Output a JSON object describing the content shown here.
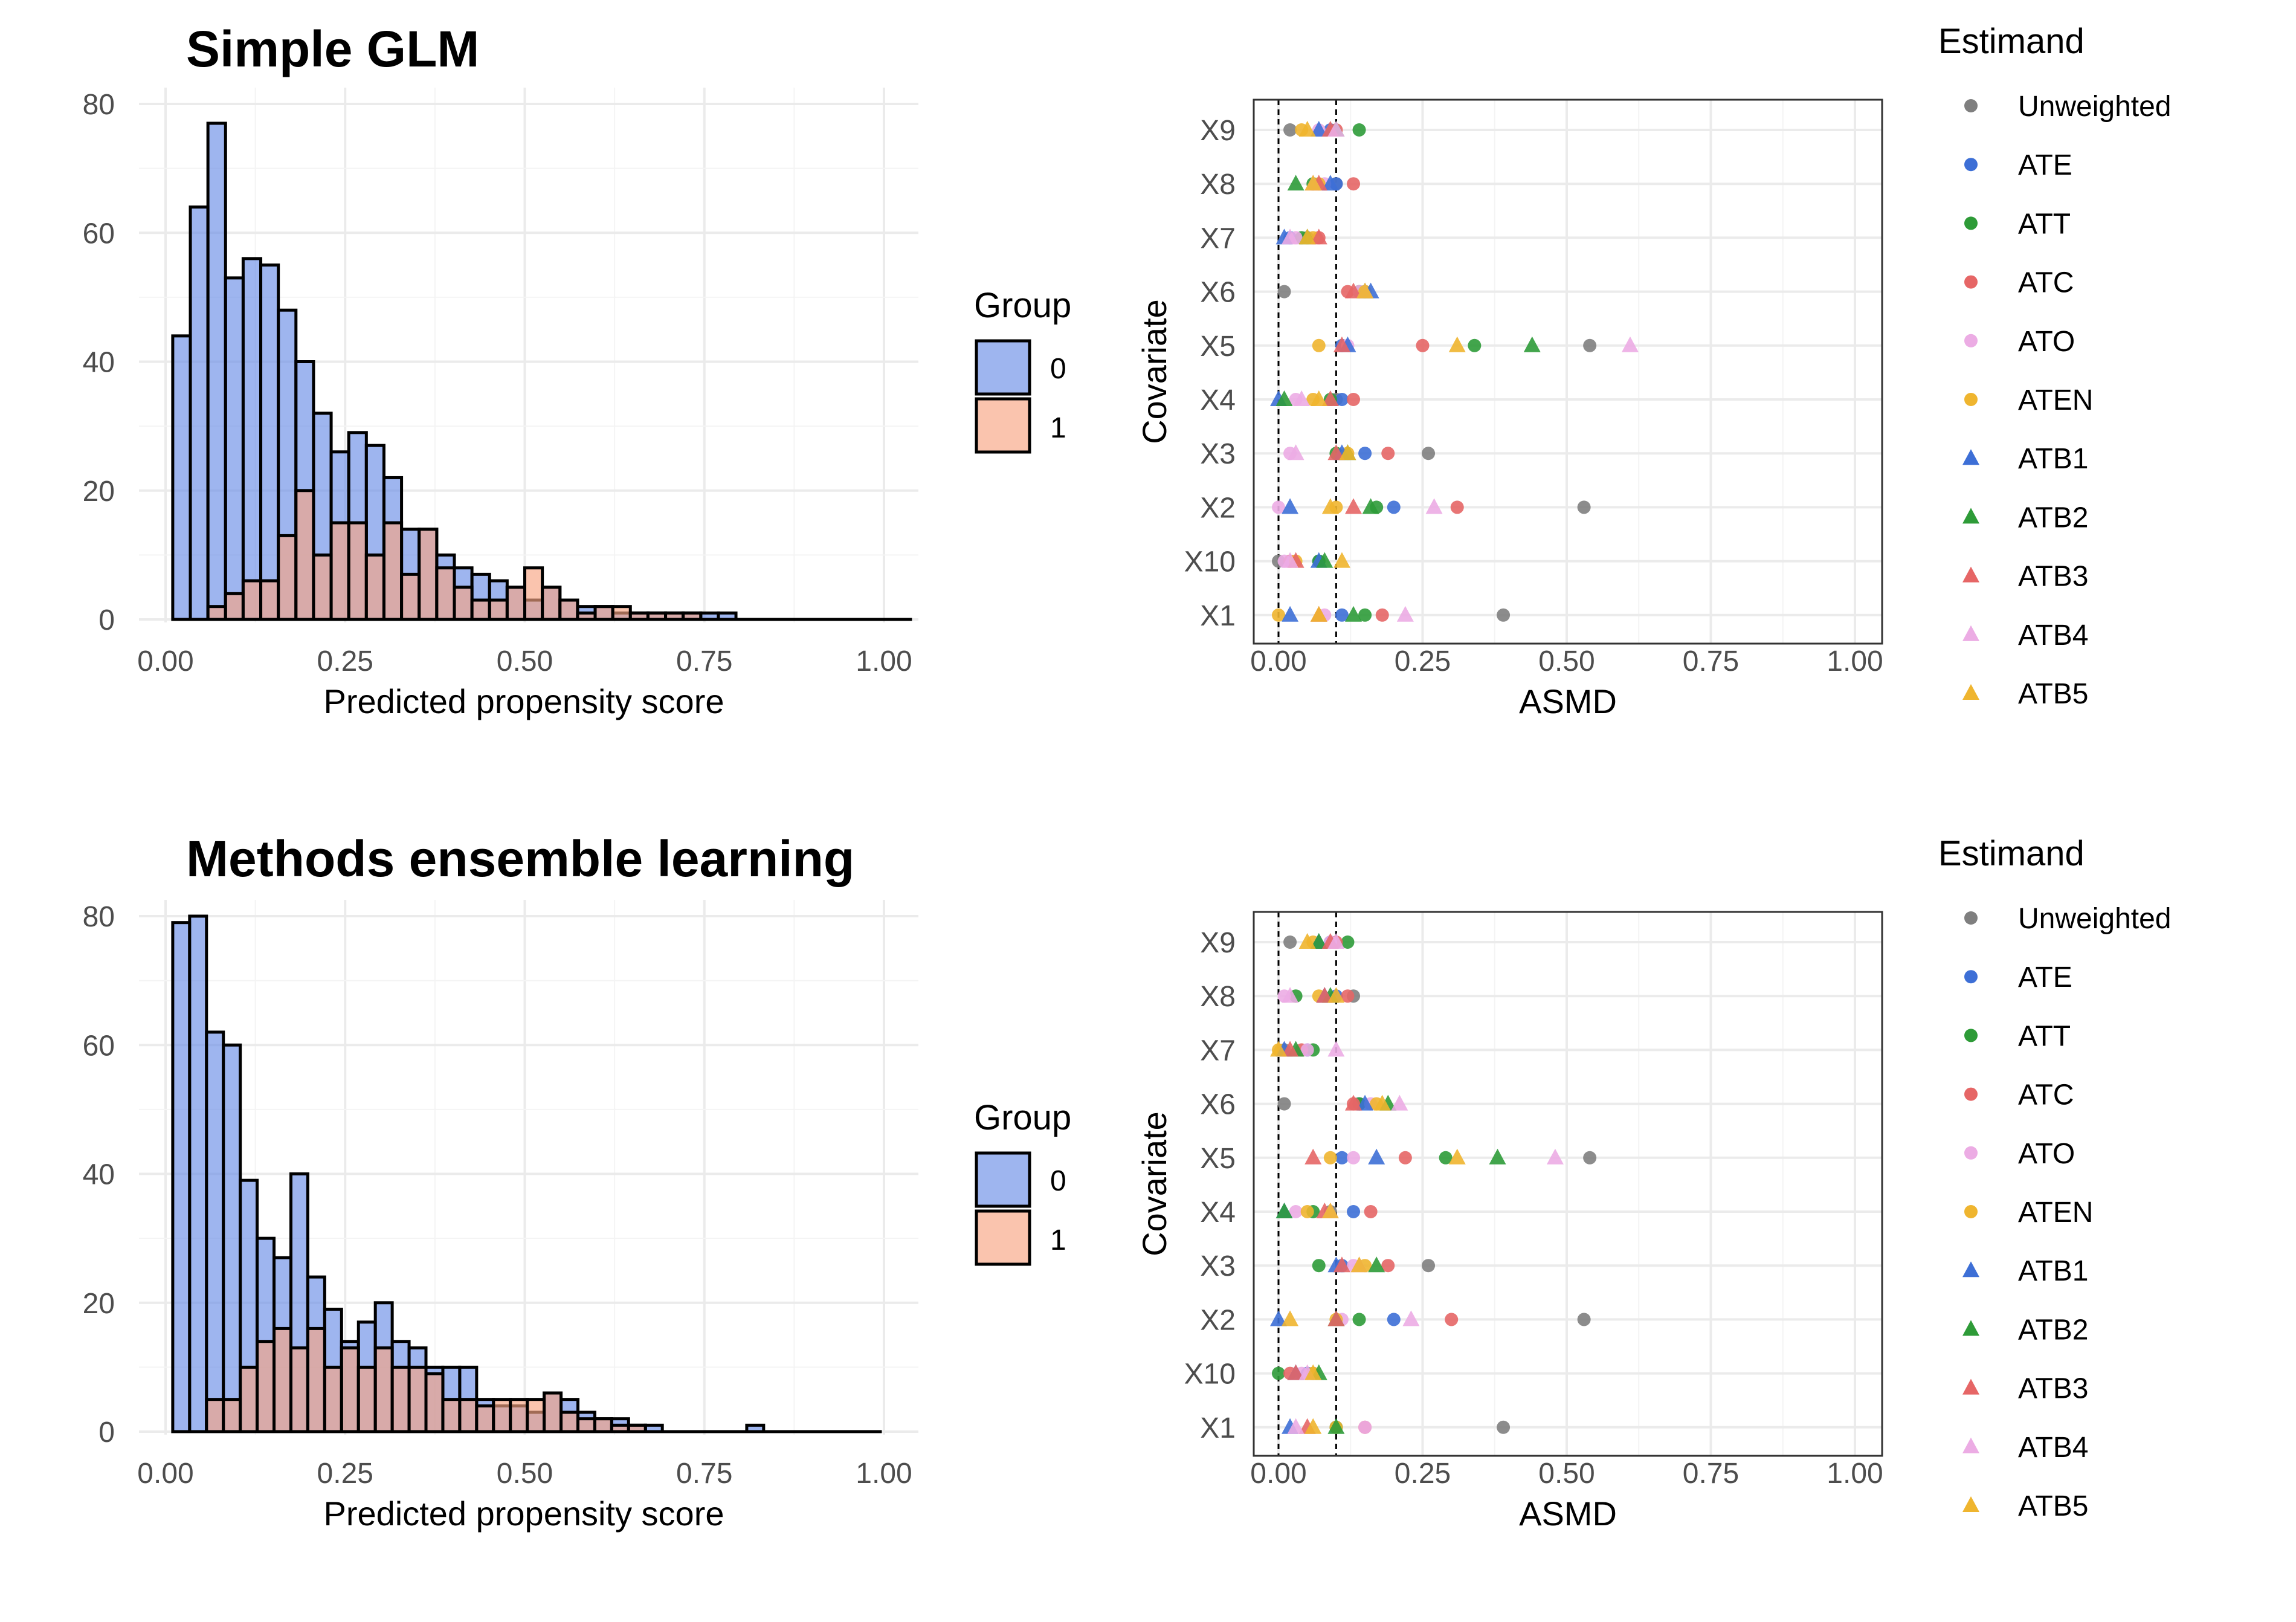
{
  "colors": {
    "group_0": "#6a8de6",
    "group_1": "#f8a582",
    "overlap": "#c08484",
    "Unweighted": "#7f7f7f",
    "ATE": "#3d6fd6",
    "ATT": "#2e9b38",
    "ATC": "#e66666",
    "ATO": "#ecace4",
    "ATEN": "#efb52f",
    "ATB1": "#3d6fd6",
    "ATB2": "#2e9b38",
    "ATB3": "#e66666",
    "ATB4": "#ecace4",
    "ATB5": "#efb52f"
  },
  "chart_data": [
    {
      "type": "bar",
      "subtype": "overlapping-histogram",
      "title": "Simple GLM",
      "xlabel": "Predicted propensity score",
      "ylabel": "",
      "xlim": [
        0,
        1
      ],
      "ylim": [
        0,
        80
      ],
      "xticks": [
        "0.00",
        "0.25",
        "0.50",
        "0.75",
        "1.00"
      ],
      "yticks": [
        "0",
        "20",
        "40",
        "60",
        "80"
      ],
      "bin_start": 0.01,
      "bin_width": 0.0245,
      "legend": {
        "title": "Group",
        "entries": [
          "0",
          "1"
        ],
        "position": "right"
      },
      "series": [
        {
          "name": "0",
          "values": [
            44,
            64,
            77,
            53,
            56,
            55,
            48,
            40,
            32,
            26,
            29,
            27,
            22,
            14,
            14,
            10,
            8,
            7,
            6,
            5,
            3,
            5,
            3,
            2,
            2,
            1,
            1,
            1,
            1,
            1,
            1,
            1,
            0,
            0,
            0,
            0,
            0,
            0,
            0,
            0,
            0,
            0
          ]
        },
        {
          "name": "1",
          "values": [
            0,
            0,
            2,
            4,
            6,
            6,
            13,
            20,
            10,
            15,
            15,
            10,
            15,
            7,
            14,
            8,
            5,
            3,
            3,
            5,
            8,
            5,
            3,
            1,
            2,
            2,
            1,
            1,
            1,
            1,
            0,
            0,
            0,
            0,
            0,
            0,
            0,
            0,
            0,
            0,
            0,
            0
          ]
        }
      ]
    },
    {
      "type": "scatter",
      "subtype": "love-plot",
      "xlabel": "ASMD",
      "ylabel": "Covariate",
      "xlim": [
        0,
        1
      ],
      "xticks": [
        "0.00",
        "0.25",
        "0.50",
        "0.75",
        "1.00"
      ],
      "vlines": [
        0,
        0.1
      ],
      "categories": [
        "X9",
        "X8",
        "X7",
        "X6",
        "X5",
        "X4",
        "X3",
        "X2",
        "X10",
        "X1"
      ],
      "legend": {
        "title": "Estimand",
        "position": "right",
        "entries": [
          {
            "name": "Unweighted",
            "shape": "circle"
          },
          {
            "name": "ATE",
            "shape": "circle"
          },
          {
            "name": "ATT",
            "shape": "circle"
          },
          {
            "name": "ATC",
            "shape": "circle"
          },
          {
            "name": "ATO",
            "shape": "circle"
          },
          {
            "name": "ATEN",
            "shape": "circle"
          },
          {
            "name": "ATB1",
            "shape": "triangle"
          },
          {
            "name": "ATB2",
            "shape": "triangle"
          },
          {
            "name": "ATB3",
            "shape": "triangle"
          },
          {
            "name": "ATB4",
            "shape": "triangle"
          },
          {
            "name": "ATB5",
            "shape": "triangle"
          }
        ]
      },
      "series": [
        {
          "name": "Unweighted",
          "values": [
            0.02,
            0.1,
            0.05,
            0.01,
            0.54,
            0.1,
            0.26,
            0.53,
            0.0,
            0.39
          ]
        },
        {
          "name": "ATE",
          "values": [
            0.09,
            0.1,
            0.02,
            0.15,
            0.11,
            0.11,
            0.15,
            0.2,
            0.07,
            0.11
          ]
        },
        {
          "name": "ATT",
          "values": [
            0.14,
            0.06,
            0.04,
            0.14,
            0.34,
            0.09,
            0.1,
            0.17,
            0.07,
            0.15
          ]
        },
        {
          "name": "ATC",
          "values": [
            0.1,
            0.13,
            0.07,
            0.12,
            0.25,
            0.13,
            0.19,
            0.31,
            0.02,
            0.18
          ]
        },
        {
          "name": "ATO",
          "values": [
            0.07,
            0.08,
            0.03,
            0.14,
            0.12,
            0.03,
            0.02,
            0.0,
            0.01,
            0.08
          ]
        },
        {
          "name": "ATEN",
          "values": [
            0.04,
            0.07,
            0.06,
            0.15,
            0.07,
            0.06,
            0.12,
            0.1,
            0.03,
            0.0
          ]
        },
        {
          "name": "ATB1",
          "values": [
            0.07,
            0.09,
            0.01,
            0.16,
            0.12,
            0.0,
            0.11,
            0.02,
            0.07,
            0.02
          ]
        },
        {
          "name": "ATB2",
          "values": [
            0.1,
            0.03,
            0.05,
            0.15,
            0.44,
            0.01,
            0.12,
            0.16,
            0.08,
            0.13
          ]
        },
        {
          "name": "ATB3",
          "values": [
            0.09,
            0.07,
            0.07,
            0.13,
            0.11,
            0.09,
            0.1,
            0.13,
            0.03,
            0.07
          ]
        },
        {
          "name": "ATB4",
          "values": [
            0.1,
            0.06,
            0.02,
            0.15,
            0.61,
            0.04,
            0.03,
            0.27,
            0.02,
            0.22
          ]
        },
        {
          "name": "ATB5",
          "values": [
            0.05,
            0.06,
            0.05,
            0.15,
            0.31,
            0.07,
            0.12,
            0.09,
            0.11,
            0.07
          ]
        }
      ]
    },
    {
      "type": "bar",
      "subtype": "overlapping-histogram",
      "title": "Methods ensemble learning",
      "xlabel": "Predicted propensity score",
      "ylabel": "",
      "xlim": [
        0,
        1
      ],
      "ylim": [
        0,
        80
      ],
      "xticks": [
        "0.00",
        "0.25",
        "0.50",
        "0.75",
        "1.00"
      ],
      "yticks": [
        "0",
        "20",
        "40",
        "60",
        "80"
      ],
      "bin_start": 0.01,
      "bin_width": 0.0235,
      "legend": {
        "title": "Group",
        "entries": [
          "0",
          "1"
        ],
        "position": "right"
      },
      "series": [
        {
          "name": "0",
          "values": [
            79,
            80,
            62,
            60,
            39,
            30,
            27,
            40,
            24,
            19,
            14,
            17,
            20,
            14,
            13,
            10,
            10,
            10,
            5,
            4,
            4,
            3,
            6,
            5,
            3,
            2,
            2,
            1,
            1,
            0,
            0,
            0,
            0,
            0,
            1,
            0,
            0,
            0,
            0,
            0,
            0,
            0
          ]
        },
        {
          "name": "1",
          "values": [
            0,
            0,
            5,
            5,
            10,
            14,
            16,
            13,
            16,
            10,
            13,
            10,
            13,
            10,
            10,
            9,
            5,
            5,
            4,
            5,
            5,
            5,
            6,
            3,
            2,
            2,
            1,
            1,
            0,
            0,
            0,
            0,
            0,
            0,
            0,
            0,
            0,
            0,
            0,
            0,
            0,
            0
          ]
        }
      ]
    },
    {
      "type": "scatter",
      "subtype": "love-plot",
      "xlabel": "ASMD",
      "ylabel": "Covariate",
      "xlim": [
        0,
        1
      ],
      "xticks": [
        "0.00",
        "0.25",
        "0.50",
        "0.75",
        "1.00"
      ],
      "vlines": [
        0,
        0.1
      ],
      "categories": [
        "X9",
        "X8",
        "X7",
        "X6",
        "X5",
        "X4",
        "X3",
        "X2",
        "X10",
        "X1"
      ],
      "legend": {
        "title": "Estimand",
        "position": "right",
        "entries": [
          {
            "name": "Unweighted",
            "shape": "circle"
          },
          {
            "name": "ATE",
            "shape": "circle"
          },
          {
            "name": "ATT",
            "shape": "circle"
          },
          {
            "name": "ATC",
            "shape": "circle"
          },
          {
            "name": "ATO",
            "shape": "circle"
          },
          {
            "name": "ATEN",
            "shape": "circle"
          },
          {
            "name": "ATB1",
            "shape": "triangle"
          },
          {
            "name": "ATB2",
            "shape": "triangle"
          },
          {
            "name": "ATB3",
            "shape": "triangle"
          },
          {
            "name": "ATB4",
            "shape": "triangle"
          },
          {
            "name": "ATB5",
            "shape": "triangle"
          }
        ]
      },
      "series": [
        {
          "name": "Unweighted",
          "values": [
            0.02,
            0.13,
            0.01,
            0.01,
            0.54,
            0.09,
            0.26,
            0.53,
            0.06,
            0.39
          ]
        },
        {
          "name": "ATE",
          "values": [
            0.09,
            0.1,
            0.05,
            0.14,
            0.11,
            0.13,
            0.11,
            0.2,
            0.05,
            0.1
          ]
        },
        {
          "name": "ATT",
          "values": [
            0.12,
            0.03,
            0.06,
            0.14,
            0.29,
            0.06,
            0.07,
            0.14,
            0.0,
            0.1
          ]
        },
        {
          "name": "ATC",
          "values": [
            0.1,
            0.12,
            0.04,
            0.13,
            0.22,
            0.16,
            0.19,
            0.3,
            0.02,
            0.15
          ]
        },
        {
          "name": "ATO",
          "values": [
            0.09,
            0.01,
            0.05,
            0.16,
            0.13,
            0.03,
            0.13,
            0.11,
            0.04,
            0.15
          ]
        },
        {
          "name": "ATEN",
          "values": [
            0.06,
            0.07,
            0.0,
            0.17,
            0.09,
            0.05,
            0.15,
            0.1,
            0.06,
            0.1
          ]
        },
        {
          "name": "ATB1",
          "values": [
            0.07,
            0.08,
            0.01,
            0.15,
            0.17,
            0.01,
            0.1,
            0.0,
            0.03,
            0.02
          ]
        },
        {
          "name": "ATB2",
          "values": [
            0.07,
            0.09,
            0.03,
            0.19,
            0.38,
            0.01,
            0.17,
            0.1,
            0.07,
            0.1
          ]
        },
        {
          "name": "ATB3",
          "values": [
            0.09,
            0.08,
            0.02,
            0.13,
            0.06,
            0.08,
            0.11,
            0.1,
            0.03,
            0.05
          ]
        },
        {
          "name": "ATB4",
          "values": [
            0.1,
            0.02,
            0.1,
            0.21,
            0.48,
            0.09,
            0.14,
            0.23,
            0.05,
            0.03
          ]
        },
        {
          "name": "ATB5",
          "values": [
            0.05,
            0.1,
            0.0,
            0.18,
            0.31,
            0.09,
            0.14,
            0.02,
            0.06,
            0.06
          ]
        }
      ]
    }
  ]
}
